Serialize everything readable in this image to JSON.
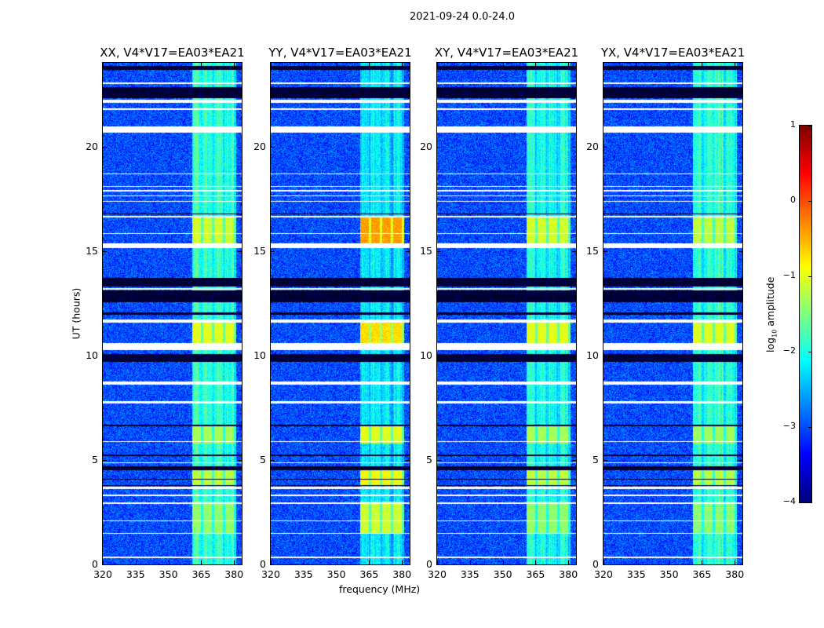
{
  "chart_data": {
    "type": "heatmap",
    "title": "2021-09-24 0.0-24.0",
    "xlabel": "frequency (MHz)",
    "ylabel": "UT (hours)",
    "xlim": [
      320,
      383.5
    ],
    "ylim": [
      0,
      24
    ],
    "xticks": [
      "320",
      "335",
      "350",
      "365",
      "380"
    ],
    "yticks": [
      "0",
      "5",
      "10",
      "15",
      "20"
    ],
    "colorbar": {
      "label_main": "log",
      "label_sub": "10",
      "label_rest": " amplitude",
      "range": [
        -4,
        1
      ],
      "ticks": [
        "1",
        "0",
        "−1",
        "−2",
        "−3",
        "−4"
      ],
      "colormap": "jet"
    },
    "background_level": -3.0,
    "signal_band_mhz": [
      361,
      381
    ],
    "signal_level": -2.2,
    "flagged_ut_white": [
      [
        0.3,
        0.38
      ],
      [
        1.45,
        1.52
      ],
      [
        2.05,
        2.12
      ],
      [
        2.88,
        2.95
      ],
      [
        3.28,
        3.35
      ],
      [
        3.6,
        3.72
      ],
      [
        4.85,
        4.9
      ],
      [
        5.85,
        5.9
      ],
      [
        7.7,
        7.82
      ],
      [
        8.6,
        8.75
      ],
      [
        10.25,
        10.6
      ],
      [
        11.55,
        11.7
      ],
      [
        13.15,
        13.22
      ],
      [
        15.15,
        15.35
      ],
      [
        15.8,
        15.86
      ],
      [
        16.6,
        16.66
      ],
      [
        17.35,
        17.4
      ],
      [
        17.6,
        17.65
      ],
      [
        17.85,
        17.9
      ],
      [
        18.05,
        18.1
      ],
      [
        18.65,
        18.72
      ],
      [
        20.65,
        20.95
      ],
      [
        21.75,
        21.82
      ],
      [
        22.1,
        22.25
      ],
      [
        23.0,
        23.05
      ]
    ],
    "flagged_ut_black": [
      [
        4.5,
        4.68
      ],
      [
        4.05,
        4.1
      ],
      [
        3.75,
        3.8
      ],
      [
        5.2,
        5.25
      ],
      [
        6.6,
        6.7
      ],
      [
        9.7,
        10.05
      ],
      [
        11.95,
        12.05
      ],
      [
        12.55,
        13.1
      ],
      [
        13.3,
        13.7
      ],
      [
        16.75,
        16.8
      ],
      [
        22.3,
        22.85
      ],
      [
        23.65,
        23.85
      ]
    ],
    "bursts": [
      {
        "ut": [
          1.5,
          3.0
        ],
        "level": -1.4
      },
      {
        "ut": [
          3.8,
          4.5
        ],
        "level": -1.2
      },
      {
        "ut": [
          5.8,
          6.6
        ],
        "level": -1.3
      },
      {
        "ut": [
          10.6,
          11.55
        ],
        "level": -1.0
      },
      {
        "ut": [
          15.35,
          16.6
        ],
        "level": -1.1
      }
    ],
    "panels": [
      {
        "title": "XX, V4*V17=EA03*EA21",
        "gain": 0.85,
        "burst_boost": 0.0
      },
      {
        "title": "YY, V4*V17=EA03*EA21",
        "gain": 1.0,
        "burst_boost": 0.7
      },
      {
        "title": "XY, V4*V17=EA03*EA21",
        "gain": 0.9,
        "burst_boost": 0.0
      },
      {
        "title": "YX, V4*V17=EA03*EA21",
        "gain": 0.85,
        "burst_boost": -0.1
      }
    ]
  }
}
